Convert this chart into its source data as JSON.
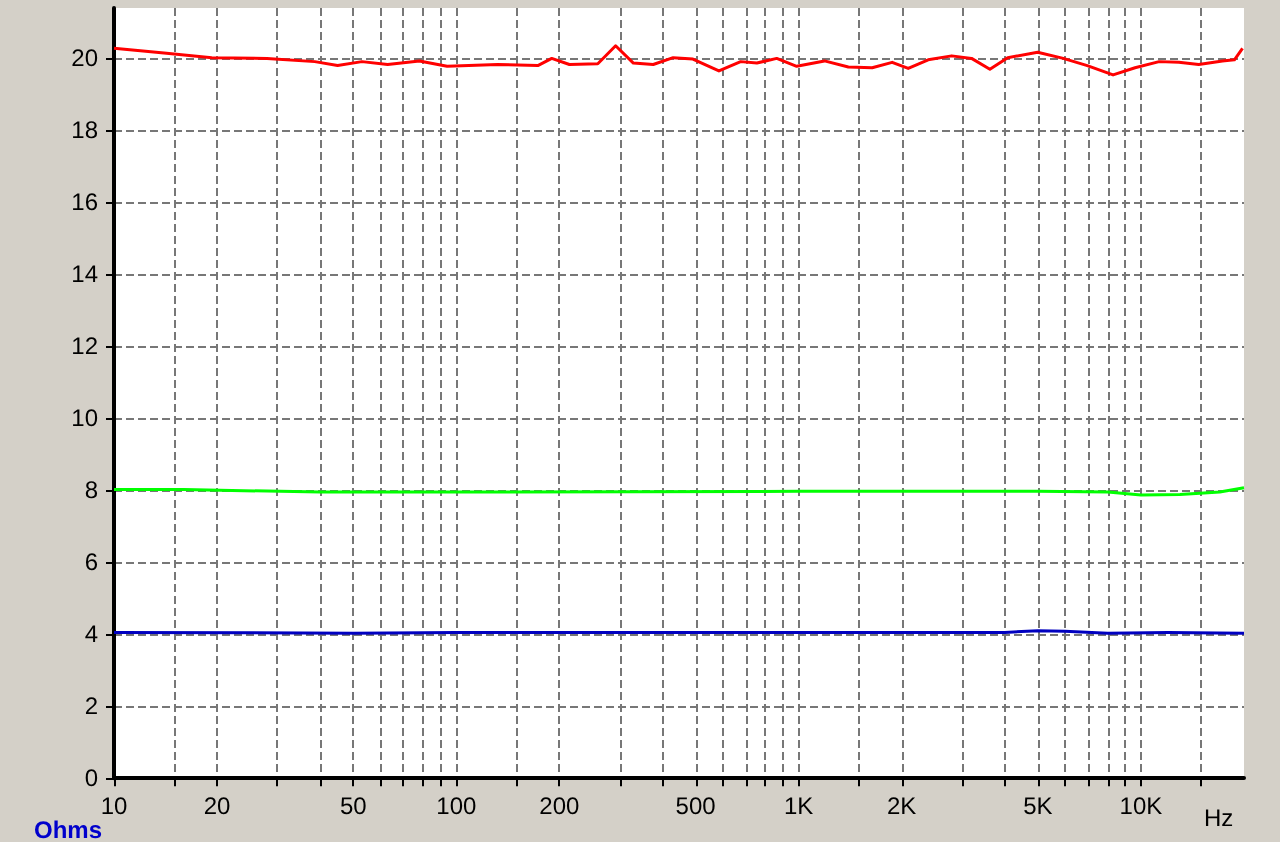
{
  "chart_data": {
    "type": "line",
    "xlabel": "Hz",
    "ylabel": "Ohms",
    "x": [
      10,
      14,
      19.3,
      28,
      38.6,
      45,
      53,
      63,
      78,
      94,
      132,
      173,
      190,
      214,
      259,
      292,
      329,
      376,
      430,
      491,
      585,
      677,
      755,
      863,
      987,
      1190,
      1397,
      1640,
      1876,
      2090,
      2390,
      2800,
      3200,
      3620,
      4080,
      4990,
      5930,
      6970,
      8290,
      9610,
      11300,
      12900,
      14750,
      17300,
      18750,
      19800
    ],
    "series": [
      {
        "color": "#ff0000",
        "values": [
          20.28,
          20.15,
          20.02,
          20.0,
          19.91,
          19.8,
          19.91,
          19.83,
          19.93,
          19.78,
          19.83,
          19.8,
          20.0,
          19.83,
          19.85,
          20.35,
          19.87,
          19.83,
          20.02,
          19.98,
          19.65,
          19.91,
          19.87,
          20.0,
          19.78,
          19.93,
          19.76,
          19.74,
          19.89,
          19.72,
          19.96,
          20.07,
          20.0,
          19.7,
          20.02,
          20.17,
          20.0,
          19.8,
          19.54,
          19.74,
          19.91,
          19.89,
          19.83,
          19.93,
          19.96,
          20.28
        ]
      },
      {
        "color": "#00ff00",
        "x": [
          10,
          16,
          40,
          100,
          1000,
          5000,
          8000,
          10000,
          13000,
          17000,
          20000
        ],
        "values": [
          8.02,
          8.02,
          7.95,
          7.95,
          7.97,
          7.97,
          7.95,
          7.87,
          7.88,
          7.95,
          8.07
        ]
      },
      {
        "color": "#0000c0",
        "x": [
          10,
          50,
          100,
          1000,
          4000,
          5000,
          6000,
          8000,
          12000,
          20000
        ],
        "values": [
          4.05,
          4.03,
          4.05,
          4.05,
          4.05,
          4.1,
          4.08,
          4.03,
          4.05,
          4.03
        ]
      }
    ],
    "xlim": [
      10,
      20000
    ],
    "ylim": [
      0,
      21.4
    ],
    "xticks": [
      10,
      {
        "value": 15,
        "label": null
      },
      20,
      {
        "value": 30,
        "label": null
      },
      {
        "value": 40,
        "label": null
      },
      50,
      {
        "value": 60,
        "label": null
      },
      {
        "value": 70,
        "label": null
      },
      {
        "value": 80,
        "label": null
      },
      {
        "value": 90,
        "label": null
      },
      100,
      {
        "value": 150,
        "label": null
      },
      200,
      {
        "value": 300,
        "label": null
      },
      {
        "value": 400,
        "label": null
      },
      500,
      {
        "value": 600,
        "label": null
      },
      {
        "value": 700,
        "label": null
      },
      {
        "value": 800,
        "label": null
      },
      {
        "value": 900,
        "label": null
      },
      {
        "value": 1000,
        "label": "1K"
      },
      {
        "value": 1500,
        "label": null
      },
      {
        "value": 2000,
        "label": "2K"
      },
      {
        "value": 3000,
        "label": null
      },
      {
        "value": 4000,
        "label": null
      },
      {
        "value": 5000,
        "label": "5K"
      },
      {
        "value": 6000,
        "label": null
      },
      {
        "value": 7000,
        "label": null
      },
      {
        "value": 8000,
        "label": null
      },
      {
        "value": 9000,
        "label": null
      },
      {
        "value": 10000,
        "label": "10K"
      },
      {
        "value": 15000,
        "label": null
      }
    ],
    "yticks": [
      0,
      2,
      4,
      6,
      8,
      10,
      12,
      14,
      16,
      18,
      20
    ],
    "log": "x",
    "grid": true,
    "marker": "none",
    "line_style": "solid"
  }
}
